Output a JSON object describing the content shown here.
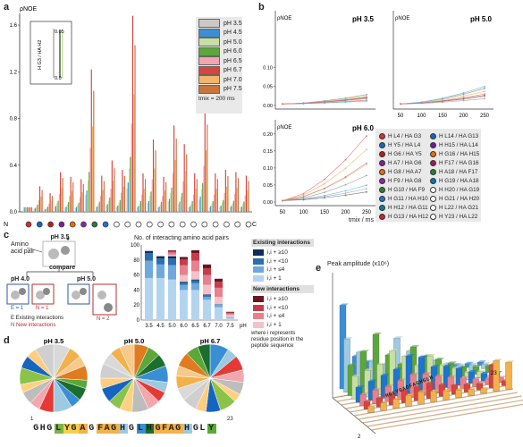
{
  "panel_labels": [
    "a",
    "b",
    "c",
    "d",
    "e"
  ],
  "chart_data": [
    {
      "panel": "a",
      "type": "bar",
      "ylabel": "ρNOE",
      "ylim": [
        0,
        1.7
      ],
      "yticks": [
        "0.0",
        "0.4",
        "0.8",
        "1.2",
        "1.6"
      ],
      "x_start_label": "N",
      "x_end_label": "C",
      "series": [
        {
          "name": "pH 3.5",
          "color": "#c9c9c9"
        },
        {
          "name": "pH 4.5",
          "color": "#3a8fd4"
        },
        {
          "name": "pH 5.0",
          "color": "#c7dfa0"
        },
        {
          "name": "pH 6.0",
          "color": "#5ba838"
        },
        {
          "name": "pH 6.5",
          "color": "#f3a5ae"
        },
        {
          "name": "pH 6.7",
          "color": "#d9423e"
        },
        {
          "name": "pH 7.0",
          "color": "#f2b46a"
        },
        {
          "name": "pH 7.5",
          "color": "#c8743c"
        }
      ],
      "group_peaks": [
        0.04,
        0.22,
        0.16,
        0.34,
        0.3,
        0.28,
        1.22,
        0.31,
        0.44,
        0.36,
        1.68,
        0.33,
        0.62,
        0.3,
        0.74,
        0.58,
        0.33,
        0.88,
        0.33,
        0.36,
        0.34,
        0.31
      ],
      "marker_colors": [
        "#d32f2f",
        "#1565c0",
        "#b71c1c",
        "#7b1fa2",
        "#ef6c00",
        "#8e24aa",
        "#2e7d32",
        "#1976d2",
        "#ffffff",
        "#ffffff",
        "#ffffff",
        "#ffffff",
        "#ffffff",
        "#ffffff",
        "#ffffff",
        "#ffffff",
        "#ffffff",
        "#ffffff",
        "#ffffff",
        "#ffffff",
        "#ffffff"
      ],
      "legend_note": "tmix = 200 ms",
      "inset": {
        "ylabel": "H G3 / HA H2",
        "ymax": "0.05",
        "ymin": "0.0"
      }
    },
    {
      "panel": "b",
      "type": "line",
      "xlabel": "tmix / ms",
      "ylabel": "ρNOE",
      "xticks": [
        50,
        100,
        150,
        200,
        250
      ],
      "yticks": [
        "0.00",
        "0.05",
        "0.10",
        "0.15",
        "0.20"
      ],
      "subplots": [
        {
          "title": "pH 3.5",
          "ends": [
            0.01,
            0.02,
            0.025,
            0.03
          ]
        },
        {
          "title": "pH 5.0",
          "ends": [
            0.02,
            0.035,
            0.045,
            0.05,
            0.06
          ]
        },
        {
          "title": "pH 6.0",
          "ends": [
            0.19,
            0.16,
            0.12,
            0.09,
            0.06,
            0.05,
            0.04
          ]
        }
      ],
      "legend_left": [
        "H L4 / HA G3",
        "H Y5 / HA L4",
        "H G6 / HA Y5",
        "H A7 / HA G6",
        "H G8 / HA A7",
        "H F9 / HA G8",
        "H G10 / HA F9",
        "H G11 / HA H10",
        "H H12 / HA G11",
        "H G13 / HA H12"
      ],
      "legend_right": [
        "H L14 / HA G13",
        "H H15 / HA L14",
        "H G16 / HA H15",
        "H F17 / HA G16",
        "H A18 / HA F17",
        "H G19 / HA A18",
        "H H20 / HA G19",
        "H G21 / HA H20",
        "H L22 / HA G21",
        "H Y23 / HA L22"
      ],
      "legend_colors": [
        "#d32f2f",
        "#1565c0",
        "#b71c1c",
        "#7b1fa2",
        "#ef6c00",
        "#8e24aa",
        "#2e7d32",
        "#1976d2",
        "#00838f",
        "#c62828",
        "#1565c0",
        "#6a1b9a",
        "#ef6c00",
        "#ad1457",
        "#2e7d32",
        "#0277bd",
        "#ffffff",
        "#ffffff",
        "#ffffff",
        "#ffffff"
      ]
    },
    {
      "panel": "c",
      "type": "bar",
      "title": "No. of interacting amino acid pairs",
      "xlabel": "pH",
      "categories": [
        "3.5",
        "4.5",
        "5.0",
        "6.0",
        "6.5",
        "6.7",
        "7.0",
        "7.5"
      ],
      "ylim": [
        0,
        100
      ],
      "yticks": [
        "0",
        "20",
        "40",
        "60",
        "80",
        "100"
      ],
      "series": [
        {
          "name": "E i,i + 1",
          "color": "#b3d4ef",
          "values": [
            56,
            56,
            54,
            40,
            40,
            27,
            17,
            3
          ]
        },
        {
          "name": "E i,i + ≤4",
          "color": "#6fa8dc",
          "values": [
            23,
            18,
            19,
            7,
            9,
            4,
            3,
            1
          ]
        },
        {
          "name": "E i,i + <10",
          "color": "#2c6fb0",
          "values": [
            10,
            8,
            9,
            3,
            4,
            2,
            1,
            0
          ]
        },
        {
          "name": "E i,i + ≥10",
          "color": "#0d2f5a",
          "values": [
            3,
            3,
            3,
            1,
            1,
            1,
            0,
            0
          ]
        },
        {
          "name": "N i,i + 1",
          "color": "#f4c1c8",
          "values": [
            0,
            0,
            2,
            9,
            11,
            13,
            10,
            3
          ]
        },
        {
          "name": "N i,i + ≤4",
          "color": "#e8808d",
          "values": [
            0,
            0,
            3,
            13,
            14,
            13,
            12,
            2
          ]
        },
        {
          "name": "N i,i + <10",
          "color": "#c83b4b",
          "values": [
            0,
            0,
            2,
            8,
            10,
            9,
            8,
            1
          ]
        },
        {
          "name": "N i,i + ≥10",
          "color": "#6b1520",
          "values": [
            0,
            0,
            1,
            3,
            4,
            5,
            4,
            1
          ]
        }
      ]
    },
    {
      "panel": "d",
      "type": "pie",
      "charts": [
        {
          "title": "pH 3.5",
          "slices": [
            8,
            6,
            5,
            7,
            4,
            6,
            5,
            9,
            7,
            5,
            6,
            4,
            8,
            6,
            5,
            9
          ]
        },
        {
          "title": "pH 5.0",
          "slices": [
            7,
            6,
            6,
            8,
            5,
            5,
            6,
            8,
            6,
            6,
            7,
            5,
            7,
            6,
            5,
            7
          ]
        },
        {
          "title": "pH 6.7",
          "slices": [
            9,
            5,
            7,
            6,
            6,
            4,
            8,
            7,
            5,
            7,
            6,
            6,
            5,
            7,
            6,
            6
          ]
        }
      ],
      "colors": [
        "#d9d9d9",
        "#f2b14a",
        "#f7c98a",
        "#e07b1f",
        "#5ba838",
        "#1b6e2d",
        "#3a8fd4",
        "#9ecae1",
        "#e53935",
        "#f4a6ad",
        "#bdbdbd",
        "#ffd180",
        "#8bc34a",
        "#1565c0",
        "#ffcc80",
        "#cfcfcf"
      ]
    },
    {
      "panel": "e",
      "type": "bar",
      "title": "Peak amplitude (x10⁶)",
      "xlabel_values": [
        "1",
        "23"
      ],
      "ylabel_values": [
        "2",
        "23"
      ]
    }
  ],
  "panel_c": {
    "amino_label": "Amino acid pair",
    "ph_top": "pH 3.5",
    "compare": "compare",
    "ph_left": "pH 4.0",
    "ph_right": "pH 5.0",
    "e_left": "E = 1",
    "n_left": "N = 1",
    "n_right": "N = 2",
    "key_e": "E  Existing interactions",
    "key_n": "N  New interactions",
    "existing_title": "Existing interactions",
    "new_title": "New interactions",
    "footnote": "where i represents residue position in the peptide sequence",
    "existing_items": [
      "i,i + ≥10",
      "i,i + <10",
      "i,i + ≤4",
      "i,i + 1"
    ],
    "new_items": [
      "i,i + ≥10",
      "i,i + <10",
      "i,i + ≤4",
      "i,i + 1"
    ]
  },
  "panel_d": {
    "seq_start": "1",
    "seq_end": "23",
    "sequence": [
      {
        "t": "GHG",
        "c": "#ffffff"
      },
      {
        "t": "L",
        "c": "#7cb342"
      },
      {
        "t": "YG",
        "c": "#f6d04d"
      },
      {
        "t": "A",
        "c": "#f2b14a"
      },
      {
        "t": "G",
        "c": "#ffffff"
      },
      {
        "t": "FAG",
        "c": "#f2b14a"
      },
      {
        "t": "H",
        "c": "#9ecae1"
      },
      {
        "t": "G",
        "c": "#ffffff"
      },
      {
        "t": "L",
        "c": "#3a8fd4"
      },
      {
        "t": "H",
        "c": "#1b6e2d"
      },
      {
        "t": "GFAG",
        "c": "#f2b14a"
      },
      {
        "t": "H",
        "c": "#9ecae1"
      },
      {
        "t": "GL",
        "c": "#ffffff"
      },
      {
        "t": "Y",
        "c": "#5ba838"
      }
    ]
  },
  "panel_e": {
    "axis_seq": "HGLYGAGFAGHGLH",
    "axis_seq2": "FAGHGLY"
  }
}
